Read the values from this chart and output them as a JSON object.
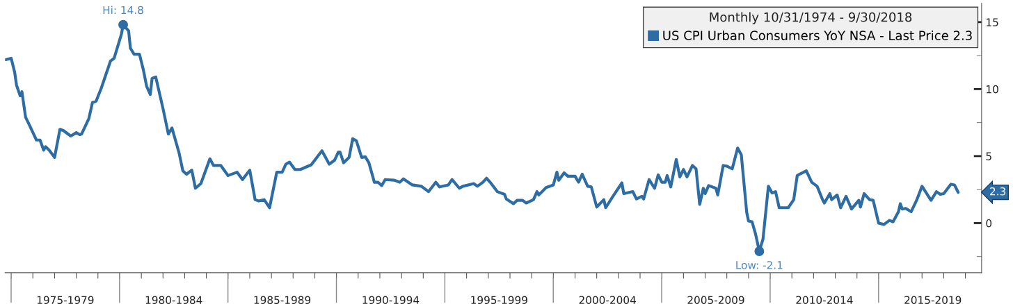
{
  "chart_data": {
    "type": "line",
    "x": [
      "1974-10",
      "1975-01",
      "1975-03",
      "1975-04",
      "1975-06",
      "1975-07",
      "1975-09",
      "1975-11",
      "1976-03",
      "1976-05",
      "1976-07",
      "1976-08",
      "1976-10",
      "1977-01",
      "1977-04",
      "1977-06",
      "1977-10",
      "1978-01",
      "1978-03",
      "1978-04",
      "1978-08",
      "1978-10",
      "1978-12",
      "1979-03",
      "1979-05",
      "1979-08",
      "1979-10",
      "1980-02",
      "1980-03",
      "1980-06",
      "1980-07",
      "1980-09",
      "1980-12",
      "1981-02",
      "1981-04",
      "1981-06",
      "1981-07",
      "1981-09",
      "1982-01",
      "1982-04",
      "1982-06",
      "1982-10",
      "1982-12",
      "1983-02",
      "1983-05",
      "1983-07",
      "1983-10",
      "1984-03",
      "1984-05",
      "1984-09",
      "1985-01",
      "1985-06",
      "1985-09",
      "1986-01",
      "1986-04",
      "1986-06",
      "1986-09",
      "1986-12",
      "1987-04",
      "1987-07",
      "1987-09",
      "1987-11",
      "1988-02",
      "1988-05",
      "1988-11",
      "1989-05",
      "1989-09",
      "1989-12",
      "1990-02",
      "1990-03",
      "1990-05",
      "1990-08",
      "1990-10",
      "1990-12",
      "1991-03",
      "1991-05",
      "1991-07",
      "1991-10",
      "1991-12",
      "1992-02",
      "1992-04",
      "1992-09",
      "1992-12",
      "1993-02",
      "1993-07",
      "1993-12",
      "1994-04",
      "1994-08",
      "1994-10",
      "1995-03",
      "1995-05",
      "1995-09",
      "1995-11",
      "1996-05",
      "1996-07",
      "1996-10",
      "1996-12",
      "1997-02",
      "1997-06",
      "1997-10",
      "1997-11",
      "1998-03",
      "1998-05",
      "1998-08",
      "1998-10",
      "1999-02",
      "1999-04",
      "1999-05",
      "1999-09",
      "2000-01",
      "2000-03",
      "2000-04",
      "2000-07",
      "2000-09",
      "2001-01",
      "2001-03",
      "2001-05",
      "2001-08",
      "2001-10",
      "2002-01",
      "2002-05",
      "2002-06",
      "2002-10",
      "2003-03",
      "2003-04",
      "2003-09",
      "2003-11",
      "2004-02",
      "2004-03",
      "2004-06",
      "2004-09",
      "2004-11",
      "2005-01",
      "2005-03",
      "2005-04",
      "2005-06",
      "2005-09",
      "2005-11",
      "2006-01",
      "2006-03",
      "2006-06",
      "2006-08",
      "2006-10",
      "2006-12",
      "2007-01",
      "2007-03",
      "2007-07",
      "2007-08",
      "2007-11",
      "2008-01",
      "2008-04",
      "2008-07",
      "2008-09",
      "2008-12",
      "2009-01",
      "2009-03",
      "2009-05",
      "2009-07",
      "2009-09",
      "2009-12",
      "2010-02",
      "2010-04",
      "2010-06",
      "2010-11",
      "2011-02",
      "2011-04",
      "2011-06",
      "2011-09",
      "2011-12",
      "2012-03",
      "2012-06",
      "2012-07",
      "2012-10",
      "2012-11",
      "2013-02",
      "2013-04",
      "2013-07",
      "2013-10",
      "2014-02",
      "2014-03",
      "2014-05",
      "2014-08",
      "2014-10",
      "2015-01",
      "2015-04",
      "2015-07",
      "2015-09",
      "2015-12",
      "2016-01",
      "2016-02",
      "2016-04",
      "2016-07",
      "2016-10",
      "2017-01",
      "2017-06",
      "2017-09",
      "2017-11",
      "2018-01",
      "2018-05",
      "2018-07",
      "2018-09"
    ],
    "series": [
      {
        "name": "US CPI Urban Consumers YoY NSA - Last Price 2.3",
        "color": "#2e6ca4",
        "values": [
          12.2,
          12.3,
          11.25,
          10.3,
          9.5,
          9.8,
          7.9,
          7.35,
          6.2,
          6.2,
          5.45,
          5.7,
          5.45,
          4.9,
          7.0,
          6.9,
          6.5,
          6.75,
          6.6,
          6.65,
          7.8,
          9.0,
          9.1,
          10.1,
          10.9,
          12.1,
          12.3,
          14.1,
          14.8,
          14.35,
          13.05,
          12.6,
          12.6,
          11.5,
          10.2,
          9.6,
          10.8,
          10.9,
          8.55,
          6.65,
          7.1,
          5.2,
          3.9,
          3.65,
          3.95,
          2.6,
          2.95,
          4.8,
          4.3,
          4.3,
          3.55,
          3.8,
          3.25,
          3.95,
          1.75,
          1.65,
          1.75,
          1.15,
          3.8,
          3.8,
          4.4,
          4.55,
          4.0,
          4.0,
          4.35,
          5.4,
          4.4,
          4.7,
          5.3,
          5.3,
          4.5,
          4.9,
          6.3,
          6.15,
          4.9,
          4.95,
          4.5,
          3.05,
          3.05,
          2.8,
          3.25,
          3.2,
          3.05,
          3.3,
          2.85,
          2.75,
          2.35,
          3.05,
          2.7,
          2.85,
          3.25,
          2.6,
          2.75,
          2.95,
          2.75,
          3.05,
          3.35,
          3.05,
          2.35,
          2.15,
          1.8,
          1.45,
          1.7,
          1.7,
          1.5,
          1.75,
          2.35,
          2.1,
          2.65,
          2.85,
          3.8,
          3.2,
          3.75,
          3.5,
          3.5,
          3.05,
          3.65,
          2.75,
          2.7,
          1.2,
          1.75,
          1.15,
          2.0,
          3.0,
          2.2,
          2.35,
          1.8,
          2.0,
          1.8,
          3.25,
          2.6,
          3.6,
          3.05,
          3.05,
          3.55,
          2.7,
          4.75,
          3.45,
          4.0,
          3.45,
          4.3,
          4.05,
          1.4,
          2.6,
          2.2,
          2.8,
          2.6,
          2.1,
          4.3,
          4.25,
          4.05,
          5.6,
          5.1,
          0.8,
          0.15,
          0.1,
          -0.85,
          -2.1,
          -1.2,
          2.75,
          2.25,
          2.35,
          1.15,
          1.15,
          1.75,
          3.55,
          3.7,
          3.9,
          3.05,
          2.75,
          1.75,
          1.5,
          2.2,
          1.75,
          2.1,
          1.15,
          2.0,
          1.05,
          1.7,
          1.2,
          2.2,
          1.75,
          1.7,
          0.0,
          -0.1,
          0.2,
          0.1,
          0.85,
          1.45,
          1.05,
          1.1,
          0.85,
          1.7,
          2.75,
          1.7,
          2.35,
          2.15,
          2.2,
          2.9,
          2.85,
          2.3
        ]
      }
    ],
    "legend_title": "Monthly 10/31/1974 - 9/30/2018",
    "legend": "top right",
    "annotations": [
      {
        "text": "Hi: 14.8",
        "x": "1980-03",
        "y": 14.8
      },
      {
        "text": "Low: -2.1",
        "x": "2009-07",
        "y": -2.1
      },
      "2.3"
    ],
    "xlim": [
      "1974-09-20",
      "2019-10-01"
    ],
    "xticks": [
      {
        "value": "1975-01-01",
        "label": null
      },
      {
        "value": "1976-01-01",
        "label": null
      },
      {
        "value": "1977-01-01",
        "label": null
      },
      {
        "value": "1978-01-01",
        "label": null
      },
      {
        "value": "1979-01-01",
        "label": null
      },
      {
        "value": "1980-01-01",
        "label": null
      },
      {
        "value": "1981-01-01",
        "label": null
      },
      {
        "value": "1982-01-01",
        "label": null
      },
      {
        "value": "1983-01-01",
        "label": null
      },
      {
        "value": "1984-01-01",
        "label": null
      },
      {
        "value": "1985-01-01",
        "label": null
      },
      {
        "value": "1986-01-01",
        "label": null
      },
      {
        "value": "1987-01-01",
        "label": null
      },
      {
        "value": "1988-01-01",
        "label": null
      },
      {
        "value": "1989-01-01",
        "label": null
      },
      {
        "value": "1990-01-01",
        "label": null
      },
      {
        "value": "1991-01-01",
        "label": null
      },
      {
        "value": "1992-01-01",
        "label": null
      },
      {
        "value": "1993-01-01",
        "label": null
      },
      {
        "value": "1994-01-01",
        "label": null
      },
      {
        "value": "1995-01-01",
        "label": null
      },
      {
        "value": "1996-01-01",
        "label": null
      },
      {
        "value": "1997-01-01",
        "label": null
      },
      {
        "value": "1998-01-01",
        "label": null
      },
      {
        "value": "1999-01-01",
        "label": null
      },
      {
        "value": "2000-01-01",
        "label": null
      },
      {
        "value": "2001-01-01",
        "label": null
      },
      {
        "value": "2002-01-01",
        "label": null
      },
      {
        "value": "2003-01-01",
        "label": null
      },
      {
        "value": "2004-01-01",
        "label": null
      },
      {
        "value": "2005-01-01",
        "label": null
      },
      {
        "value": "2006-01-01",
        "label": null
      },
      {
        "value": "2007-01-01",
        "label": null
      },
      {
        "value": "2008-01-01",
        "label": null
      },
      {
        "value": "2009-01-01",
        "label": null
      },
      {
        "value": "2010-01-01",
        "label": null
      },
      {
        "value": "2011-01-01",
        "label": null
      },
      {
        "value": "2012-01-01",
        "label": null
      },
      {
        "value": "2013-01-01",
        "label": null
      },
      {
        "value": "2014-01-01",
        "label": null
      },
      {
        "value": "2015-01-01",
        "label": null
      },
      {
        "value": "2016-01-01",
        "label": null
      },
      {
        "value": "2017-01-01",
        "label": null
      },
      {
        "value": "2018-01-01",
        "label": null
      },
      {
        "value": "2019-01-01",
        "label": null
      },
      {
        "value": "1977-07-01",
        "label": "1975-1979"
      },
      {
        "value": "1982-07-01",
        "label": "1980-1984"
      },
      {
        "value": "1987-07-01",
        "label": "1985-1989"
      },
      {
        "value": "1992-07-01",
        "label": "1990-1994"
      },
      {
        "value": "1997-07-01",
        "label": "1995-1999"
      },
      {
        "value": "2002-07-01",
        "label": "2000-2004"
      },
      {
        "value": "2007-07-01",
        "label": "2005-2009"
      },
      {
        "value": "2012-07-01",
        "label": "2010-2014"
      },
      {
        "value": "2017-07-01",
        "label": "2015-2019"
      }
    ],
    "ylim": [
      -3.7,
      16.4
    ],
    "yticks": [
      {
        "value": -2.5,
        "label": null
      },
      0,
      {
        "value": 2.5,
        "label": null
      },
      5,
      {
        "value": 7.5,
        "label": null
      },
      10,
      {
        "value": 12.5,
        "label": null
      },
      15
    ],
    "grid": false,
    "line_style": "solid"
  }
}
